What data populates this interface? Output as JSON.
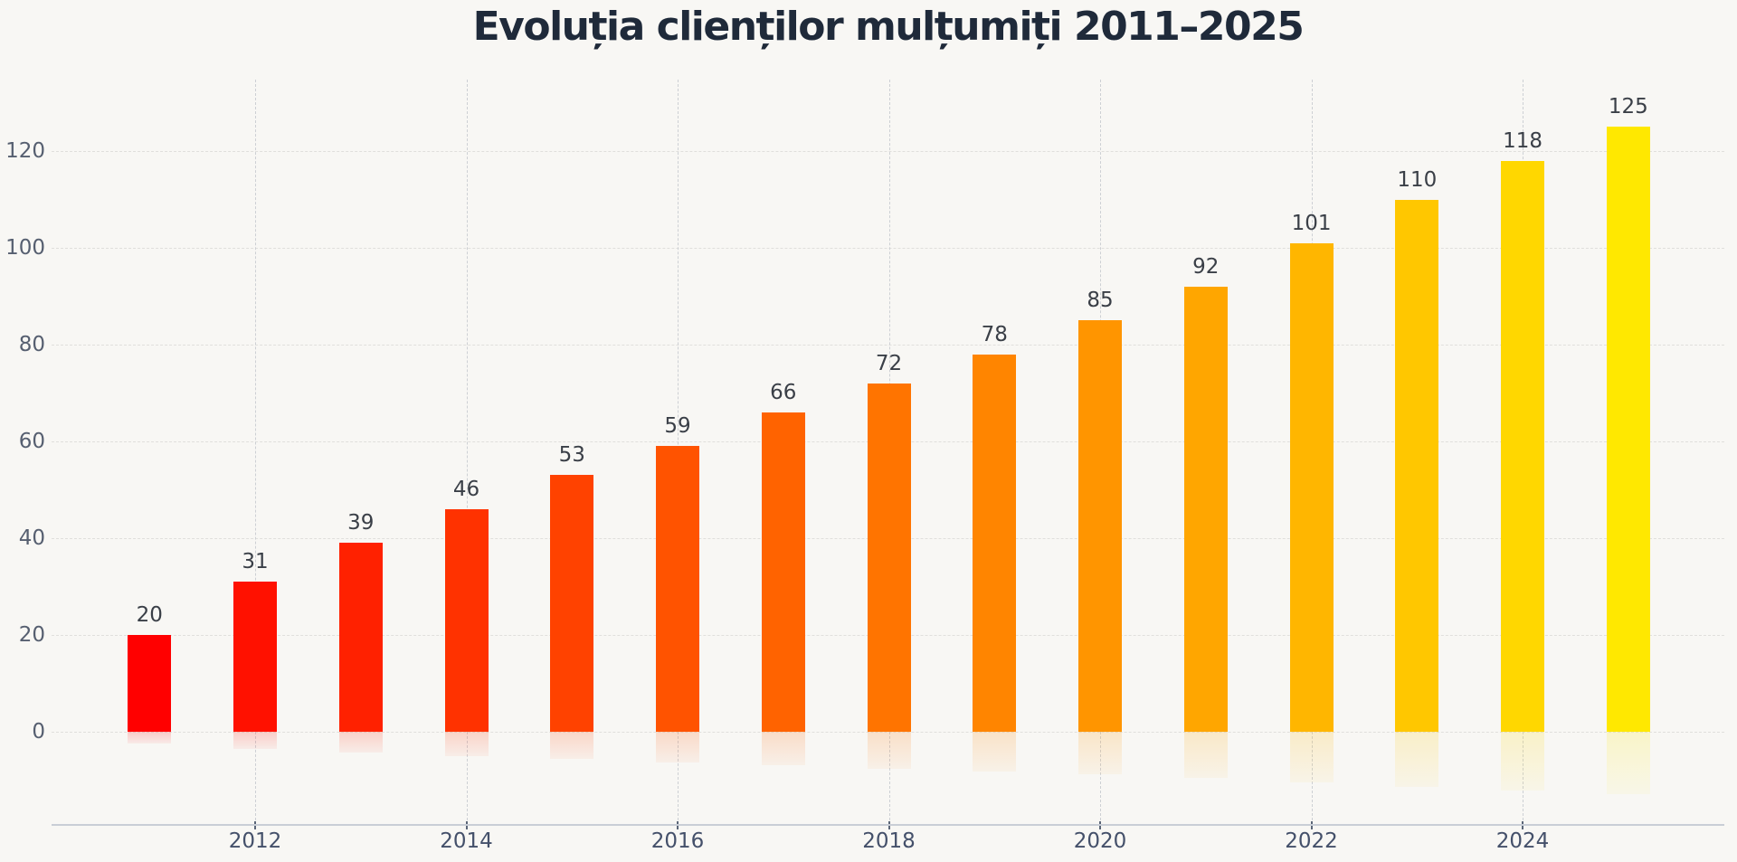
{
  "chart_data": {
    "type": "bar",
    "title": "Evoluția clienților mulțumiți 2011–2025",
    "xlabel": "",
    "ylabel": "",
    "categories": [
      "2011",
      "2012",
      "2013",
      "2014",
      "2015",
      "2016",
      "2017",
      "2018",
      "2019",
      "2020",
      "2021",
      "2022",
      "2023",
      "2024",
      "2025"
    ],
    "values": [
      20,
      31,
      39,
      46,
      53,
      59,
      66,
      72,
      78,
      85,
      92,
      101,
      110,
      118,
      125
    ],
    "bar_colors": [
      "#FF0000",
      "#FF1100",
      "#FF2100",
      "#FF3200",
      "#FF4200",
      "#FF5300",
      "#FF6300",
      "#FF7400",
      "#FF8500",
      "#FF9500",
      "#FFA600",
      "#FFB600",
      "#FFC700",
      "#FFD700",
      "#FFE800"
    ],
    "value_labels": [
      "20",
      "31",
      "39",
      "46",
      "53",
      "59",
      "66",
      "72",
      "78",
      "85",
      "92",
      "101",
      "110",
      "118",
      "125"
    ],
    "xtick_labels": [
      "2012",
      "2014",
      "2016",
      "2018",
      "2020",
      "2022",
      "2024"
    ],
    "xtick_category_indexes": [
      1,
      3,
      5,
      7,
      9,
      11,
      13
    ],
    "ytick_values": [
      0,
      20,
      40,
      60,
      80,
      100,
      120
    ],
    "ytick_labels": [
      "0",
      "20",
      "40",
      "60",
      "80",
      "100",
      "120"
    ],
    "ylim": [
      0,
      135
    ],
    "grid": "dashed horizontal and vertical gridlines",
    "legend_position": "none",
    "bar_reflection": "faded mirror below baseline, depth = 10% of value",
    "colors": {
      "background": "#f8f7f4",
      "title_text": "#1f2a3a",
      "ytick_text": "#565f70",
      "xtick_text": "#44506a",
      "value_label_text": "#3a3f47",
      "axis_line": "#c9ced6",
      "hgrid_line": "#e0dfdc",
      "vgrid_line": "#cdd0d4",
      "first_bar": "#FF0000",
      "last_bar": "#FFE800"
    }
  }
}
